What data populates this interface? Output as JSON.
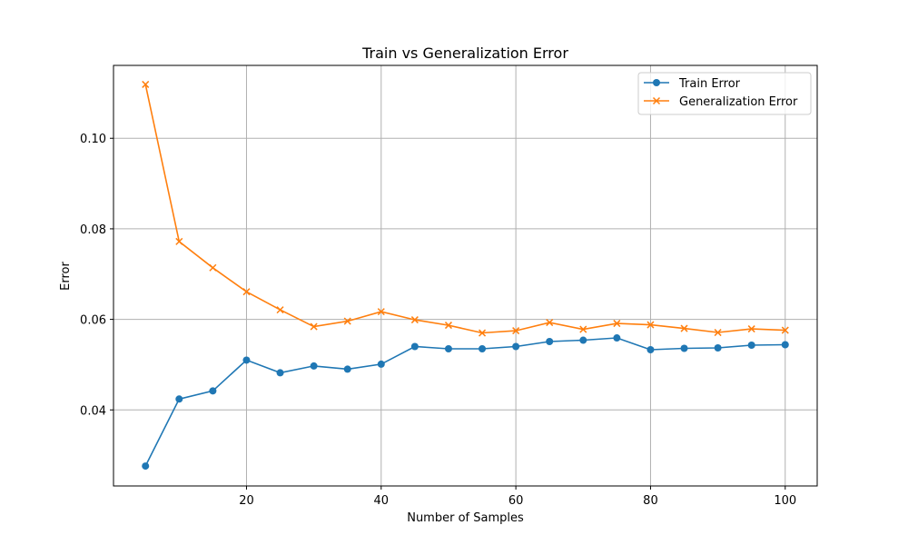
{
  "chart_data": {
    "type": "line",
    "title": "Train vs Generalization Error",
    "xlabel": "Number of Samples",
    "ylabel": "Error",
    "x": [
      5,
      10,
      15,
      20,
      25,
      30,
      35,
      40,
      45,
      50,
      55,
      60,
      65,
      70,
      75,
      80,
      85,
      90,
      95,
      100
    ],
    "xlim": [
      0.25,
      104.75
    ],
    "ylim": [
      0.0232,
      0.1161
    ],
    "xticks": [
      "20",
      "40",
      "60",
      "80",
      "100"
    ],
    "xtick_values": [
      20,
      40,
      60,
      80,
      100
    ],
    "yticks": [
      "0.04",
      "0.06",
      "0.08",
      "0.10"
    ],
    "ytick_values": [
      0.04,
      0.06,
      0.08,
      0.1
    ],
    "grid": true,
    "legend_position": "upper right",
    "series": [
      {
        "name": "Train Error",
        "color": "#1f77b4",
        "marker": "circle",
        "values": [
          0.0276,
          0.0424,
          0.0442,
          0.051,
          0.0482,
          0.0497,
          0.049,
          0.0501,
          0.054,
          0.0535,
          0.0535,
          0.054,
          0.0551,
          0.0554,
          0.0559,
          0.0533,
          0.0536,
          0.0537,
          0.0543,
          0.0544
        ]
      },
      {
        "name": "Generalization Error",
        "color": "#ff7f0e",
        "marker": "x",
        "values": [
          0.1119,
          0.0772,
          0.0714,
          0.0661,
          0.0621,
          0.0584,
          0.0596,
          0.0617,
          0.0599,
          0.0587,
          0.057,
          0.0575,
          0.0593,
          0.0578,
          0.0591,
          0.0588,
          0.058,
          0.0571,
          0.0579,
          0.0576
        ]
      }
    ]
  }
}
